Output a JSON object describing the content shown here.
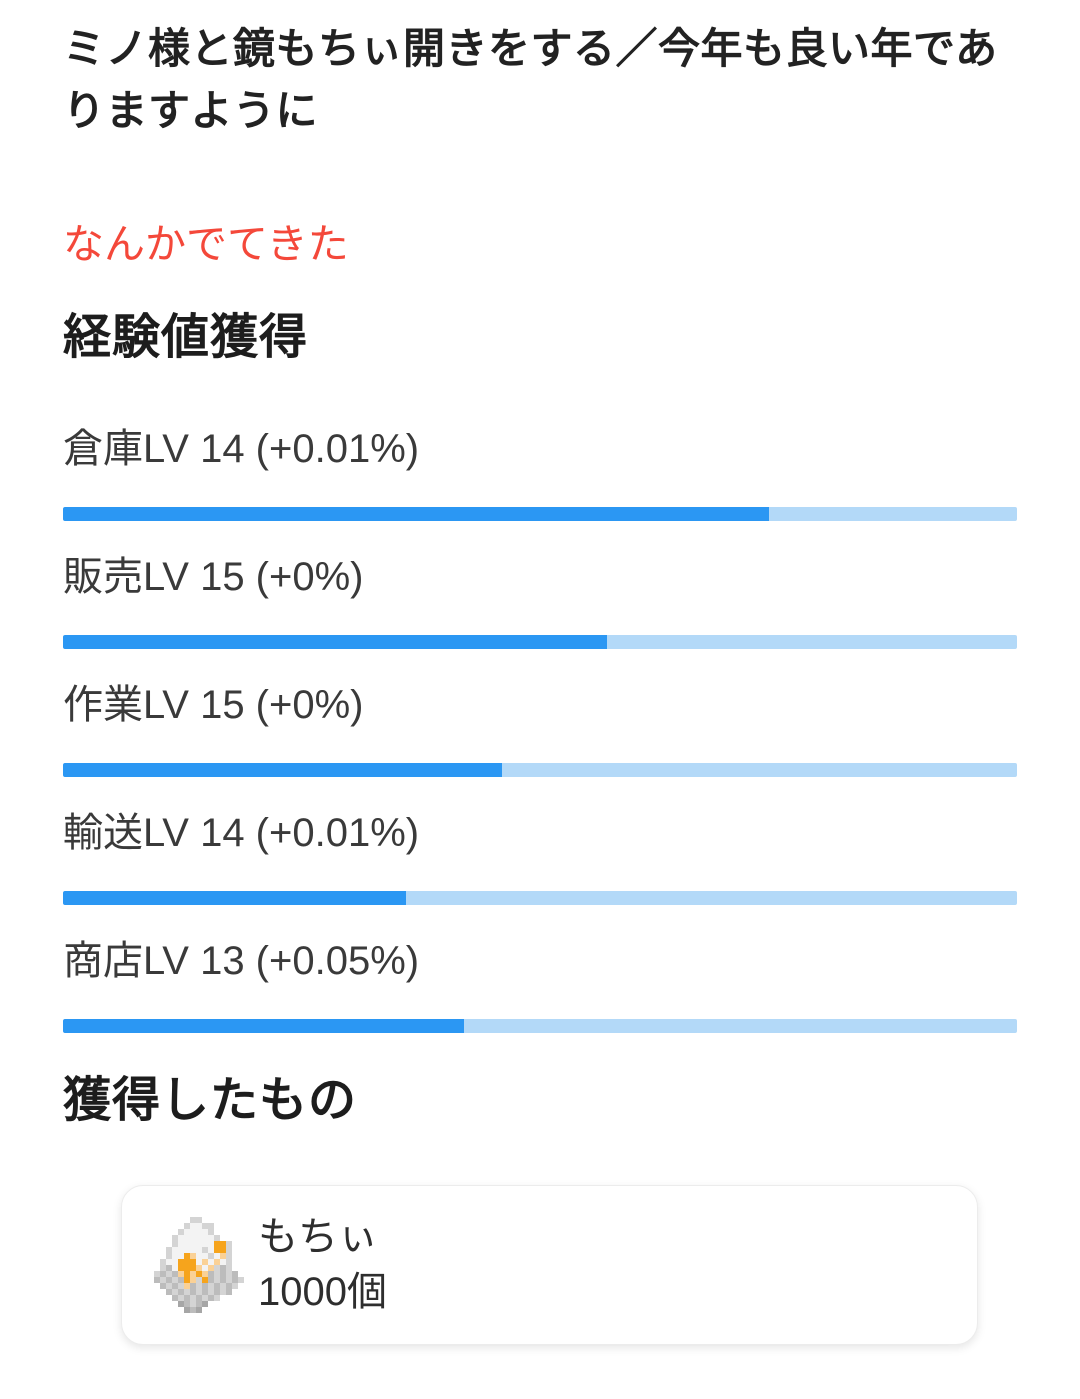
{
  "quest": {
    "title": "ミノ様と鏡もちぃ開きをする／今年も良い年でありますように",
    "drop_notice": "なんかでてきた"
  },
  "exp_section": {
    "heading": "経験値獲得",
    "skills": [
      {
        "name": "倉庫",
        "level": 14,
        "gain": "+0.01%",
        "label": "倉庫LV 14 (+0.01%)",
        "progress_percent": 74
      },
      {
        "name": "販売",
        "level": 15,
        "gain": "+0%",
        "label": "販売LV 15 (+0%)",
        "progress_percent": 57
      },
      {
        "name": "作業",
        "level": 15,
        "gain": "+0%",
        "label": "作業LV 15 (+0%)",
        "progress_percent": 46
      },
      {
        "name": "輸送",
        "level": 14,
        "gain": "+0.01%",
        "label": "輸送LV 14 (+0.01%)",
        "progress_percent": 36
      },
      {
        "name": "商店",
        "level": 13,
        "gain": "+0.05%",
        "label": "商店LV 13 (+0.05%)",
        "progress_percent": 42
      }
    ]
  },
  "items_section": {
    "heading": "獲得したもの",
    "item": {
      "name": "もちぃ",
      "quantity": "1000個",
      "icon_name": "mochi-item-icon"
    }
  },
  "item_icon": {
    "palette": {
      "L": "#d4d4d4",
      "G": "#bcbcbc",
      "D": "#a6a6a6",
      "W": "#f3f3f3",
      "O": "#f6a41c",
      "P": "#fad196"
    },
    "pixels": [
      "......LL.......",
      ".....LWWLL.....",
      "....LWWWWL.....",
      "...LWWWWWWL....",
      "...LWWWWWWOOL..",
      "..LWWWWWLWOOL..",
      "..LWWOPWWLWPL..",
      ".LWWOOOWPWPWL..",
      ".LGWOOOPWPLGL..",
      "LGLGPOPOPGLGLG.",
      "GLGLGOPLOGLGLGL",
      ".GLGLPGLGLGLGL.",
      "..GLGLGLGLGLG..",
      "...GLGLGLGL....",
      "....DGLGD......",
      ".....DGD......."
    ]
  },
  "colors": {
    "progress_fill": "#2b97f3",
    "progress_track": "#b3d9f8",
    "notice_red": "#f4483a",
    "heading_text": "#1d1d1d",
    "label_text": "#3a3a3a"
  }
}
